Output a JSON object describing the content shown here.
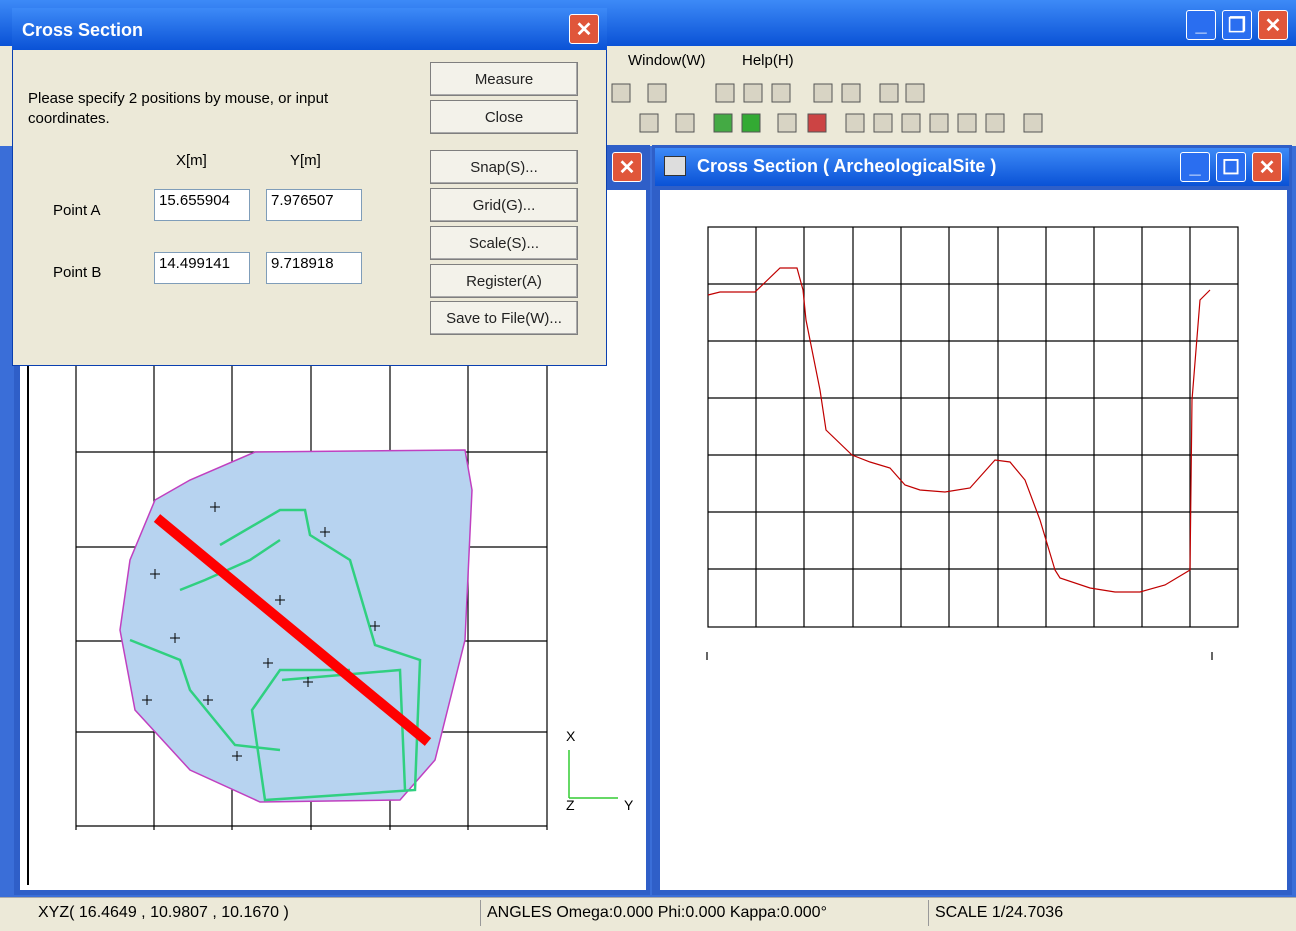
{
  "main_window": {
    "menu": [
      "Window(W)",
      "Help(H)"
    ]
  },
  "dialog": {
    "title": "Cross Section",
    "instruction": "Please specify 2 positions by mouse, or input coordinates.",
    "columns": [
      "X[m]",
      "Y[m]"
    ],
    "points": [
      {
        "label": "Point A",
        "x": "15.655904",
        "y": "7.976507"
      },
      {
        "label": "Point B",
        "x": "14.499141",
        "y": "9.718918"
      }
    ],
    "buttons": [
      "Measure",
      "Close",
      "Snap(S)...",
      "Grid(G)...",
      "Scale(S)...",
      "Register(A)",
      "Save to File(W)..."
    ]
  },
  "plan_view": {
    "axes": [
      "X",
      "Z",
      "Y"
    ]
  },
  "section_window": {
    "title": "Cross Section ( ArcheologicalSite )"
  },
  "status_bar": [
    "XYZ( 16.4649 , 10.9807 , 10.1670 )",
    "ANGLES Omega:0.000 Phi:0.000 Kappa:0.000°",
    "SCALE 1/24.7036"
  ]
}
